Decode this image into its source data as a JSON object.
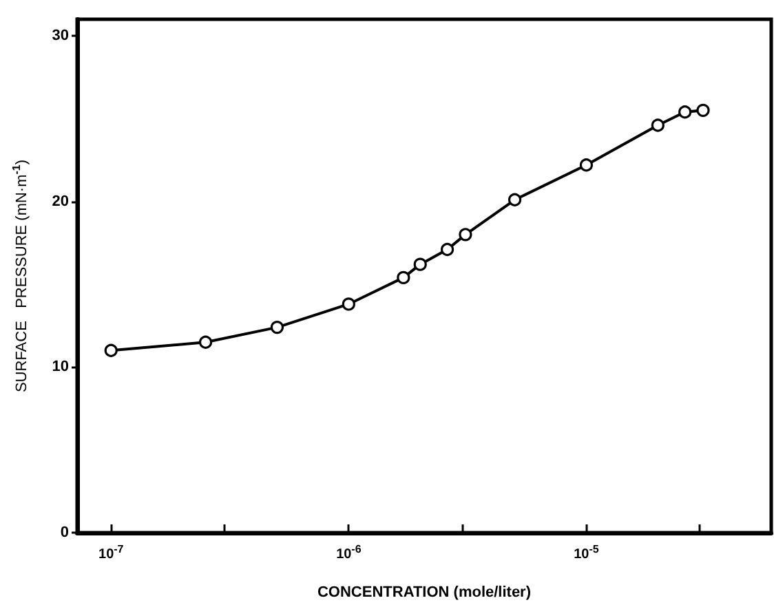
{
  "chart_data": {
    "type": "line",
    "xlabel": "CONCENTRATION (mole/liter)",
    "ylabel": "SURFACE   PRESSURE (mN·m$^{-1}$)",
    "log": "x",
    "x": [
      1e-07,
      2.5e-07,
      5e-07,
      1e-06,
      1.7e-06,
      2e-06,
      2.6e-06,
      3.1e-06,
      5e-06,
      1e-05,
      2e-05,
      2.6e-05,
      3.1e-05
    ],
    "series": [
      {
        "color": "#000000",
        "values": [
          11.0,
          11.5,
          12.4,
          13.8,
          15.4,
          16.2,
          17.1,
          18.0,
          20.1,
          22.2,
          24.6,
          25.4,
          25.5
        ]
      }
    ],
    "xlim": [
      7.2e-08,
      6e-05
    ],
    "xticks": [
      {
        "value": 1e-07,
        "label": "10$^{-7}$"
      },
      {
        "value": 3e-07,
        "label": null
      },
      {
        "value": 1e-06,
        "label": "10$^{-6}$"
      },
      {
        "value": 3e-06,
        "label": null
      },
      {
        "value": 1e-05,
        "label": "10$^{-5}$"
      },
      {
        "value": 3e-05,
        "label": null
      }
    ],
    "ylim": [
      0,
      31
    ],
    "yticks": [
      0,
      10,
      20,
      30
    ],
    "marker": "circle",
    "line_style": "solid",
    "grid": false
  }
}
